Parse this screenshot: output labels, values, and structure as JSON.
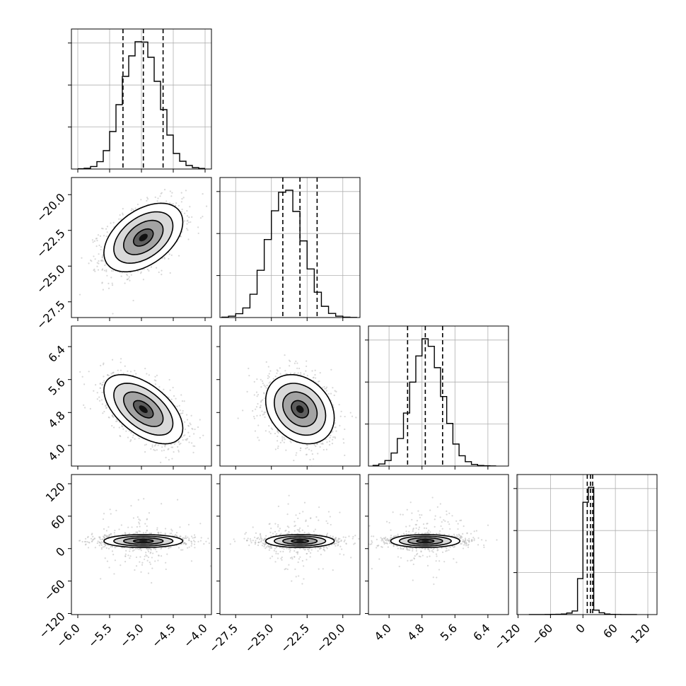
{
  "chart_data": {
    "type": "corner",
    "grid": true,
    "parameters": [
      {
        "index": 0,
        "range": [
          -6.1,
          -3.9
        ],
        "ticks": [
          -6.0,
          -5.5,
          -5.0,
          -4.5,
          -4.0
        ],
        "tick_labels": [
          "−6.0",
          "−5.5",
          "−5.0",
          "−4.5",
          "−4.0"
        ],
        "mean": -4.97,
        "sigma": 0.31,
        "quantiles": [
          -5.29,
          -4.97,
          -4.66
        ]
      },
      {
        "index": 1,
        "range": [
          -28.6,
          -18.8
        ],
        "ticks": [
          -27.5,
          -25.0,
          -22.5,
          -20.0
        ],
        "tick_labels": [
          "−27.5",
          "−25.0",
          "−22.5",
          "−20.0"
        ],
        "mean": -23.0,
        "sigma": 1.2,
        "quantiles": [
          -24.2,
          -23.0,
          -21.8
        ]
      },
      {
        "index": 2,
        "range": [
          3.5,
          6.9
        ],
        "ticks": [
          4.0,
          4.8,
          5.6,
          6.4
        ],
        "tick_labels": [
          "4.0",
          "4.8",
          "5.6",
          "6.4"
        ],
        "mean": 4.88,
        "sigma": 0.42,
        "quantiles": [
          4.45,
          4.88,
          5.3
        ]
      },
      {
        "index": 3,
        "range": [
          -122,
          137
        ],
        "ticks": [
          -120,
          -60,
          0,
          60,
          120
        ],
        "tick_labels": [
          "−120",
          "−60",
          "0",
          "60",
          "120"
        ],
        "mean": 14,
        "sigma": 6,
        "quantiles": [
          8,
          14,
          18
        ]
      }
    ],
    "histograms": [
      {
        "param": 0,
        "bin_edges": [
          -6.0,
          -5.9,
          -5.8,
          -5.7,
          -5.6,
          -5.5,
          -5.4,
          -5.3,
          -5.2,
          -5.1,
          -5.0,
          -4.9,
          -4.8,
          -4.7,
          -4.6,
          -4.5,
          -4.4,
          -4.3,
          -4.2,
          -4.1,
          -4.0
        ],
        "counts": [
          2,
          5,
          18,
          52,
          130,
          265,
          455,
          655,
          800,
          900,
          898,
          790,
          620,
          420,
          240,
          110,
          55,
          25,
          10,
          4
        ]
      },
      {
        "param": 1,
        "bin_edges": [
          -28.5,
          -28.0,
          -27.5,
          -27.0,
          -26.5,
          -26.0,
          -25.5,
          -25.0,
          -24.5,
          -24.0,
          -23.5,
          -23.0,
          -22.5,
          -22.0,
          -21.5,
          -21.0,
          -20.5,
          -20.0,
          -19.5,
          -19.0
        ],
        "counts": [
          3,
          10,
          28,
          70,
          170,
          345,
          570,
          780,
          915,
          930,
          775,
          560,
          355,
          185,
          82,
          30,
          10,
          3,
          1
        ]
      },
      {
        "param": 2,
        "bin_edges": [
          3.6,
          3.75,
          3.9,
          4.05,
          4.2,
          4.35,
          4.5,
          4.65,
          4.8,
          4.95,
          5.1,
          5.25,
          5.4,
          5.55,
          5.7,
          5.85,
          6.0,
          6.15,
          6.3,
          6.45,
          6.6
        ],
        "counts": [
          5,
          15,
          40,
          95,
          200,
          385,
          610,
          800,
          925,
          870,
          715,
          505,
          310,
          160,
          75,
          32,
          12,
          4,
          2,
          1
        ]
      },
      {
        "param": 3,
        "bin_edges": [
          -100,
          -90,
          -80,
          -70,
          -60,
          -50,
          -40,
          -30,
          -20,
          -10,
          0,
          10,
          20,
          30,
          40,
          50,
          60,
          70,
          80,
          90,
          100
        ],
        "counts": [
          1,
          1,
          2,
          3,
          6,
          10,
          20,
          50,
          120,
          1200,
          3750,
          4250,
          150,
          60,
          20,
          8,
          4,
          2,
          1,
          1
        ]
      }
    ],
    "panels_2d": [
      {
        "x_param": 0,
        "y_param": 1,
        "rho": 0.45
      },
      {
        "x_param": 0,
        "y_param": 2,
        "rho": -0.55
      },
      {
        "x_param": 1,
        "y_param": 2,
        "rho": -0.25
      },
      {
        "x_param": 0,
        "y_param": 3,
        "rho": 0.0
      },
      {
        "x_param": 1,
        "y_param": 3,
        "rho": 0.0
      },
      {
        "x_param": 2,
        "y_param": 3,
        "rho": 0.0
      }
    ],
    "contour_levels_sigma": [
      0.5,
      1.0,
      1.5,
      2.0
    ],
    "colors": {
      "line": "#000000",
      "points": "#b8b8b8",
      "grid": "#b0b0b0"
    }
  }
}
